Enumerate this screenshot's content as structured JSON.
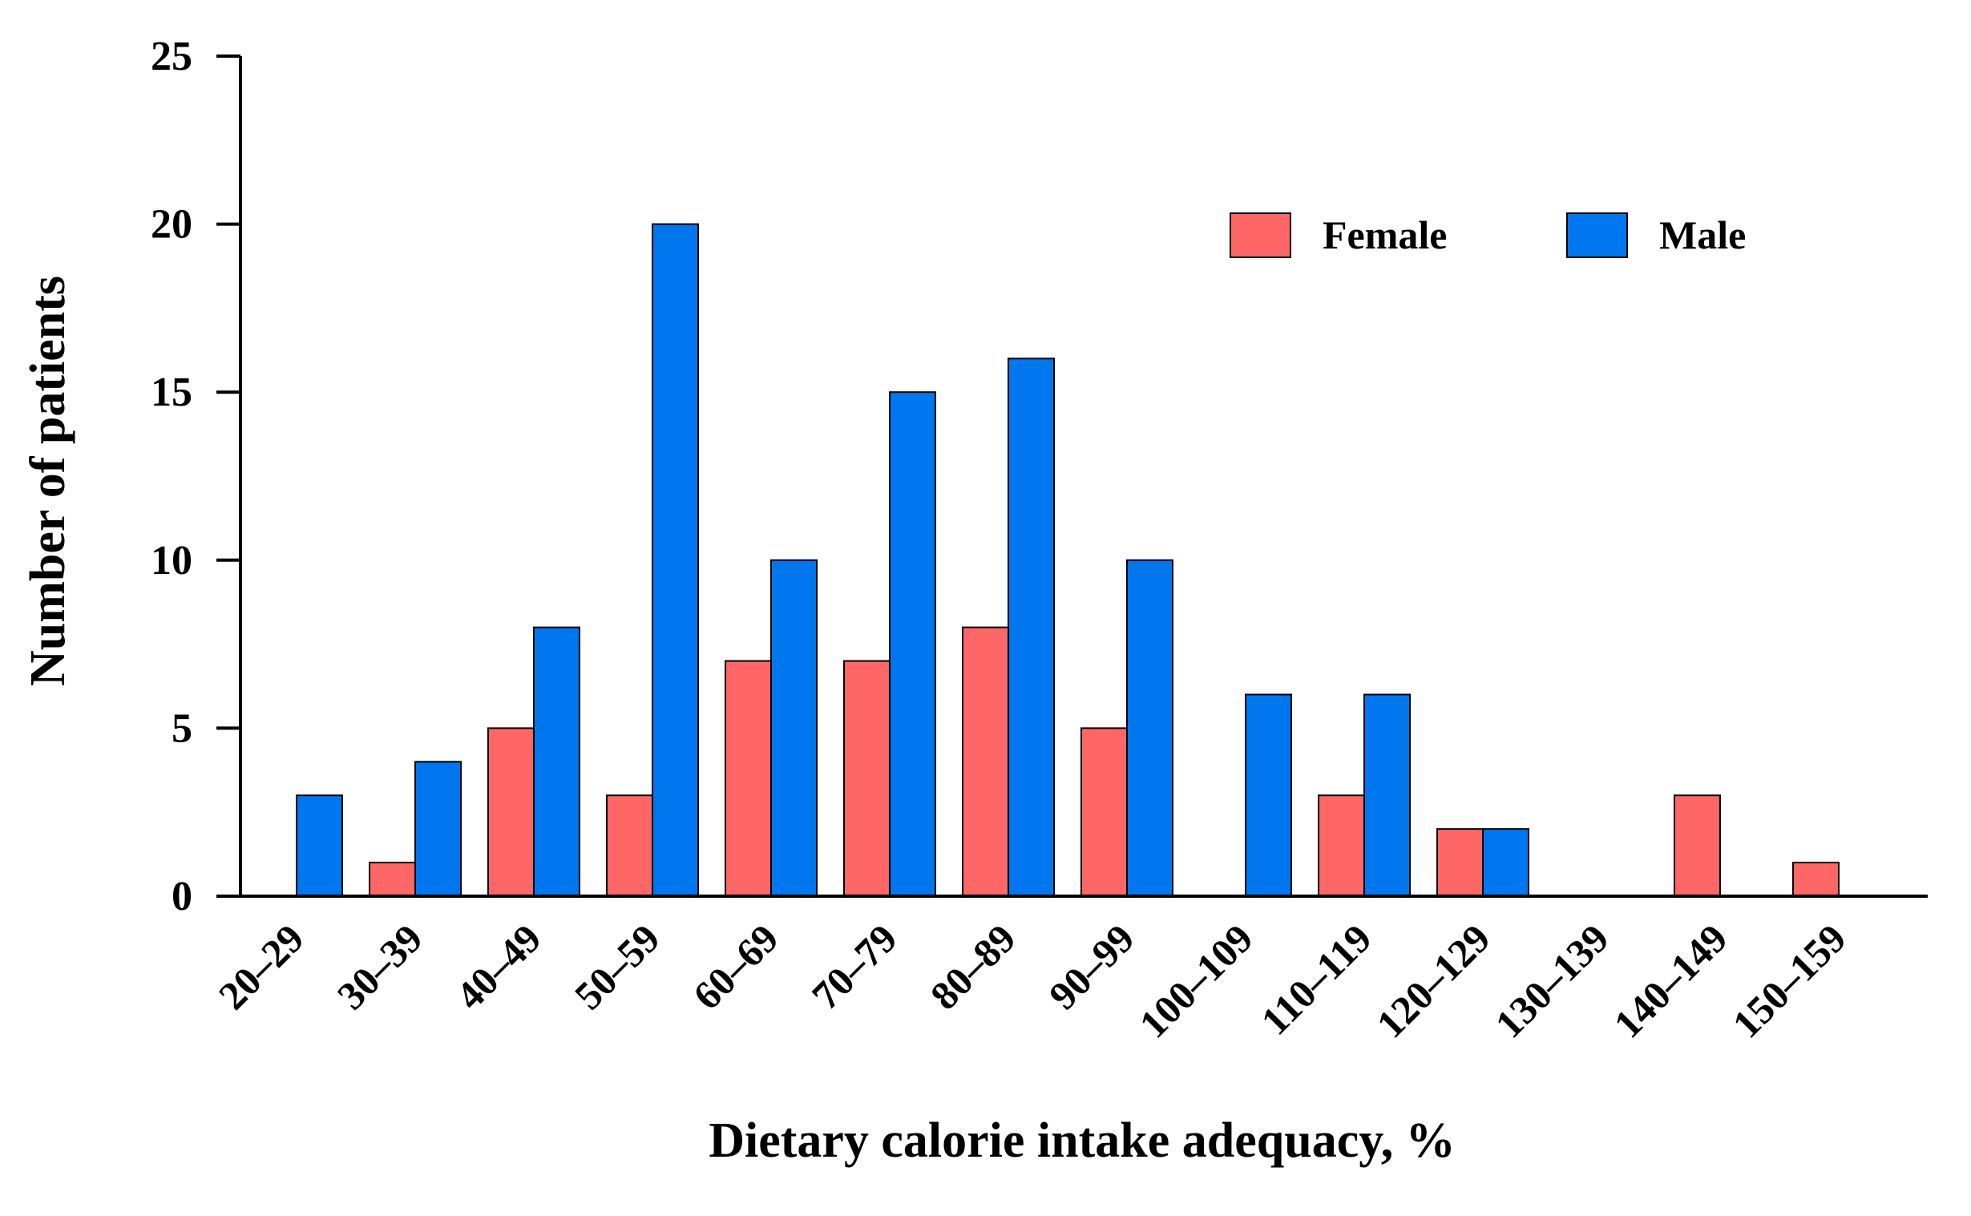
{
  "chart_data": {
    "type": "bar",
    "title": "",
    "xlabel": "Dietary calorie intake adequacy, %",
    "ylabel": "Number of patients",
    "categories": [
      "20–29",
      "30–39",
      "40–49",
      "50–59",
      "60–69",
      "70–79",
      "80–89",
      "90–99",
      "100–109",
      "110–119",
      "120–129",
      "130–139",
      "140–149",
      "150–159"
    ],
    "series": [
      {
        "name": "Female",
        "color": "#ff6666",
        "values": [
          0,
          1,
          5,
          3,
          7,
          7,
          8,
          5,
          0,
          3,
          2,
          0,
          3,
          1
        ]
      },
      {
        "name": "Male",
        "color": "#0077ee",
        "values": [
          3,
          4,
          8,
          20,
          10,
          15,
          16,
          10,
          6,
          6,
          2,
          0,
          0,
          0
        ]
      }
    ],
    "ylim": [
      0,
      25
    ],
    "yticks": [
      0,
      5,
      10,
      15,
      20,
      25
    ],
    "grid": false,
    "legend_position": "top-right"
  }
}
